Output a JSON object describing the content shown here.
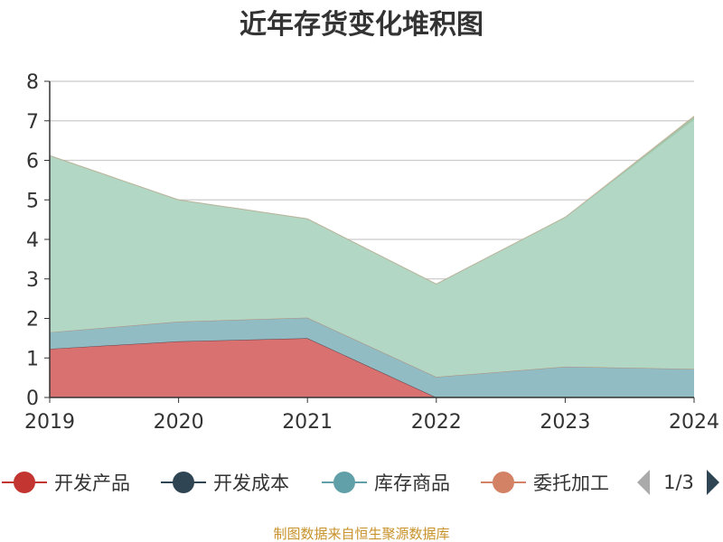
{
  "chart_data": {
    "type": "area",
    "stacked": true,
    "title": "近年存货变化堆积图",
    "ylabel": "",
    "ylim": [
      0,
      8
    ],
    "yticks": [
      0,
      1,
      2,
      3,
      4,
      5,
      6,
      7,
      8
    ],
    "grid": true,
    "categories": [
      "2019",
      "2020",
      "2021",
      "2022",
      "2023",
      "2024"
    ],
    "series": [
      {
        "name": "开发产品",
        "color": "#c23531",
        "fill_color": "#d87170",
        "values": [
          1.23,
          1.42,
          1.5,
          0.0,
          0.0,
          0.0
        ]
      },
      {
        "name": "开发成本",
        "color": "#2f4554",
        "fill_color": "#2f4554",
        "values": [
          0.0,
          0.0,
          0.0,
          0.0,
          0.0,
          0.0
        ]
      },
      {
        "name": "库存商品",
        "color": "#61a0a8",
        "fill_color": "#91bcc3",
        "values": [
          0.42,
          0.5,
          0.52,
          0.52,
          0.78,
          0.72
        ]
      },
      {
        "name": "委托加工",
        "color": "#d48265",
        "fill_color": "#d48265",
        "values": [
          0.0,
          0.0,
          0.0,
          0.0,
          0.0,
          0.0
        ]
      },
      {
        "name": "",
        "color": "#91c7ae",
        "fill_color": "#b2d8c5",
        "values": [
          4.47,
          3.08,
          2.5,
          2.35,
          3.78,
          6.32
        ]
      },
      {
        "name": "",
        "color": "#c8a88e",
        "fill_color": "#a6c3a8",
        "values": [
          0.0,
          0.0,
          0.0,
          0.0,
          0.0,
          0.08
        ]
      }
    ],
    "legend": {
      "position": "bottom",
      "visible_count": 4,
      "page": "1/3"
    }
  },
  "source": "制图数据来自恒生聚源数据库"
}
